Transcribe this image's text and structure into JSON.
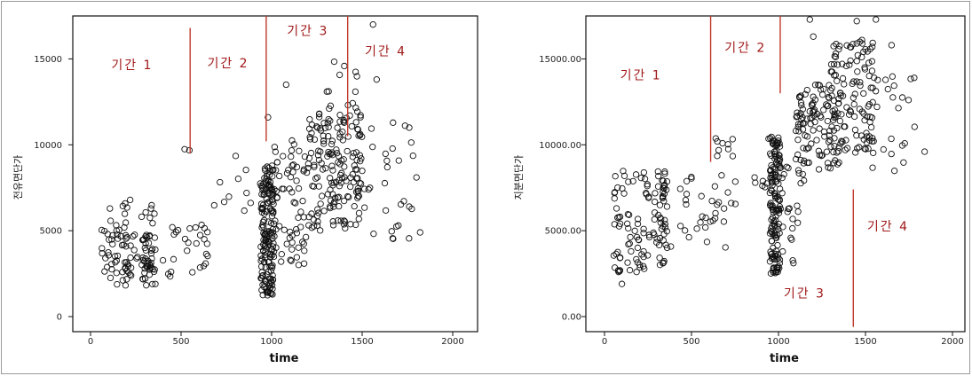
{
  "chart_data": [
    {
      "type": "scatter",
      "xlabel": "time",
      "ylabel": "전유면단가",
      "xlim": [
        0,
        2000
      ],
      "ylim": [
        0,
        17500
      ],
      "xticks": [
        "0",
        "500",
        "1000",
        "1500",
        "2000"
      ],
      "yticks": [
        "0",
        "5000",
        "10000",
        "15000"
      ],
      "colors": {
        "divider": "#c0392b",
        "period_label": "#a01818"
      },
      "dividers": [
        {
          "x": 550,
          "y_from": 9500,
          "y_to": 16800
        },
        {
          "x": 970,
          "y_from": 10200,
          "y_to": 17800
        },
        {
          "x": 1420,
          "y_from": 10500,
          "y_to": 18000
        }
      ],
      "annotations": [
        {
          "text": "기간 1",
          "x": 230,
          "y": 14400
        },
        {
          "text": "기간 2",
          "x": 760,
          "y": 14500
        },
        {
          "text": "기간 3",
          "x": 1200,
          "y": 16400
        },
        {
          "text": "기간 4",
          "x": 1630,
          "y": 15200
        }
      ],
      "clusters": [
        {
          "x": [
            60,
            260
          ],
          "y": [
            1800,
            5200
          ],
          "n": 55
        },
        {
          "x": [
            60,
            260
          ],
          "y": [
            4200,
            6800
          ],
          "n": 12
        },
        {
          "x": [
            280,
            360
          ],
          "y": [
            1800,
            4800
          ],
          "n": 45
        },
        {
          "x": [
            280,
            360
          ],
          "y": [
            4500,
            6500
          ],
          "n": 8
        },
        {
          "x": [
            380,
            700
          ],
          "y": [
            2200,
            5500
          ],
          "n": 22
        },
        {
          "x": [
            500,
            950
          ],
          "y": [
            3500,
            9800
          ],
          "n": 18
        },
        {
          "x": [
            940,
            1010
          ],
          "y": [
            1200,
            8800
          ],
          "n": 170
        },
        {
          "x": [
            1010,
            1200
          ],
          "y": [
            3000,
            10500
          ],
          "n": 70
        },
        {
          "x": [
            1200,
            1500
          ],
          "y": [
            5000,
            12000
          ],
          "n": 160
        },
        {
          "x": [
            1300,
            1480
          ],
          "y": [
            11000,
            15000
          ],
          "n": 18
        },
        {
          "x": [
            1450,
            1800
          ],
          "y": [
            4500,
            11500
          ],
          "n": 30
        }
      ],
      "extra_points": [
        [
          1560,
          17000
        ],
        [
          980,
          11600
        ],
        [
          1080,
          13500
        ],
        [
          1580,
          13800
        ],
        [
          1760,
          11000
        ],
        [
          1800,
          8100
        ],
        [
          1820,
          4900
        ],
        [
          1700,
          5300
        ],
        [
          1760,
          6400
        ]
      ]
    },
    {
      "type": "scatter",
      "xlabel": "time",
      "ylabel": "지분면단가",
      "xlim": [
        0,
        2000
      ],
      "ylim": [
        0,
        17500
      ],
      "xticks": [
        "0",
        "500",
        "1000",
        "1500",
        "2000"
      ],
      "yticks": [
        "0.00",
        "5000.00",
        "10000.00",
        "15000.00"
      ],
      "colors": {
        "divider": "#c0392b",
        "period_label": "#a01818"
      },
      "dividers": [
        {
          "x": 610,
          "y_from": 9000,
          "y_to": 17600
        },
        {
          "x": 1010,
          "y_from": 13000,
          "y_to": 18000
        },
        {
          "x": 1430,
          "y_from": -600,
          "y_to": 7400
        }
      ],
      "annotations": [
        {
          "text": "기간 1",
          "x": 210,
          "y": 13800
        },
        {
          "text": "기간 2",
          "x": 810,
          "y": 15400
        },
        {
          "text": "기간 3",
          "x": 1150,
          "y": 1100
        },
        {
          "text": "기간 4",
          "x": 1630,
          "y": 5000
        }
      ],
      "clusters": [
        {
          "x": [
            50,
            260
          ],
          "y": [
            2500,
            8500
          ],
          "n": 70
        },
        {
          "x": [
            280,
            360
          ],
          "y": [
            3000,
            9000
          ],
          "n": 50
        },
        {
          "x": [
            380,
            700
          ],
          "y": [
            4000,
            8500
          ],
          "n": 25
        },
        {
          "x": [
            600,
            950
          ],
          "y": [
            6000,
            11000
          ],
          "n": 25
        },
        {
          "x": [
            950,
            1010
          ],
          "y": [
            2500,
            10500
          ],
          "n": 150
        },
        {
          "x": [
            1010,
            1150
          ],
          "y": [
            3000,
            9500
          ],
          "n": 25
        },
        {
          "x": [
            1100,
            1350
          ],
          "y": [
            8500,
            13500
          ],
          "n": 110
        },
        {
          "x": [
            1300,
            1550
          ],
          "y": [
            9500,
            16000
          ],
          "n": 110
        },
        {
          "x": [
            1500,
            1800
          ],
          "y": [
            8000,
            14000
          ],
          "n": 25
        }
      ],
      "extra_points": [
        [
          1180,
          17500
        ],
        [
          1450,
          17200
        ],
        [
          1560,
          17300
        ],
        [
          1480,
          16100
        ],
        [
          1650,
          15800
        ],
        [
          1780,
          13900
        ],
        [
          1840,
          9600
        ],
        [
          1200,
          16300
        ],
        [
          100,
          1900
        ],
        [
          1450,
          15900
        ]
      ]
    }
  ]
}
